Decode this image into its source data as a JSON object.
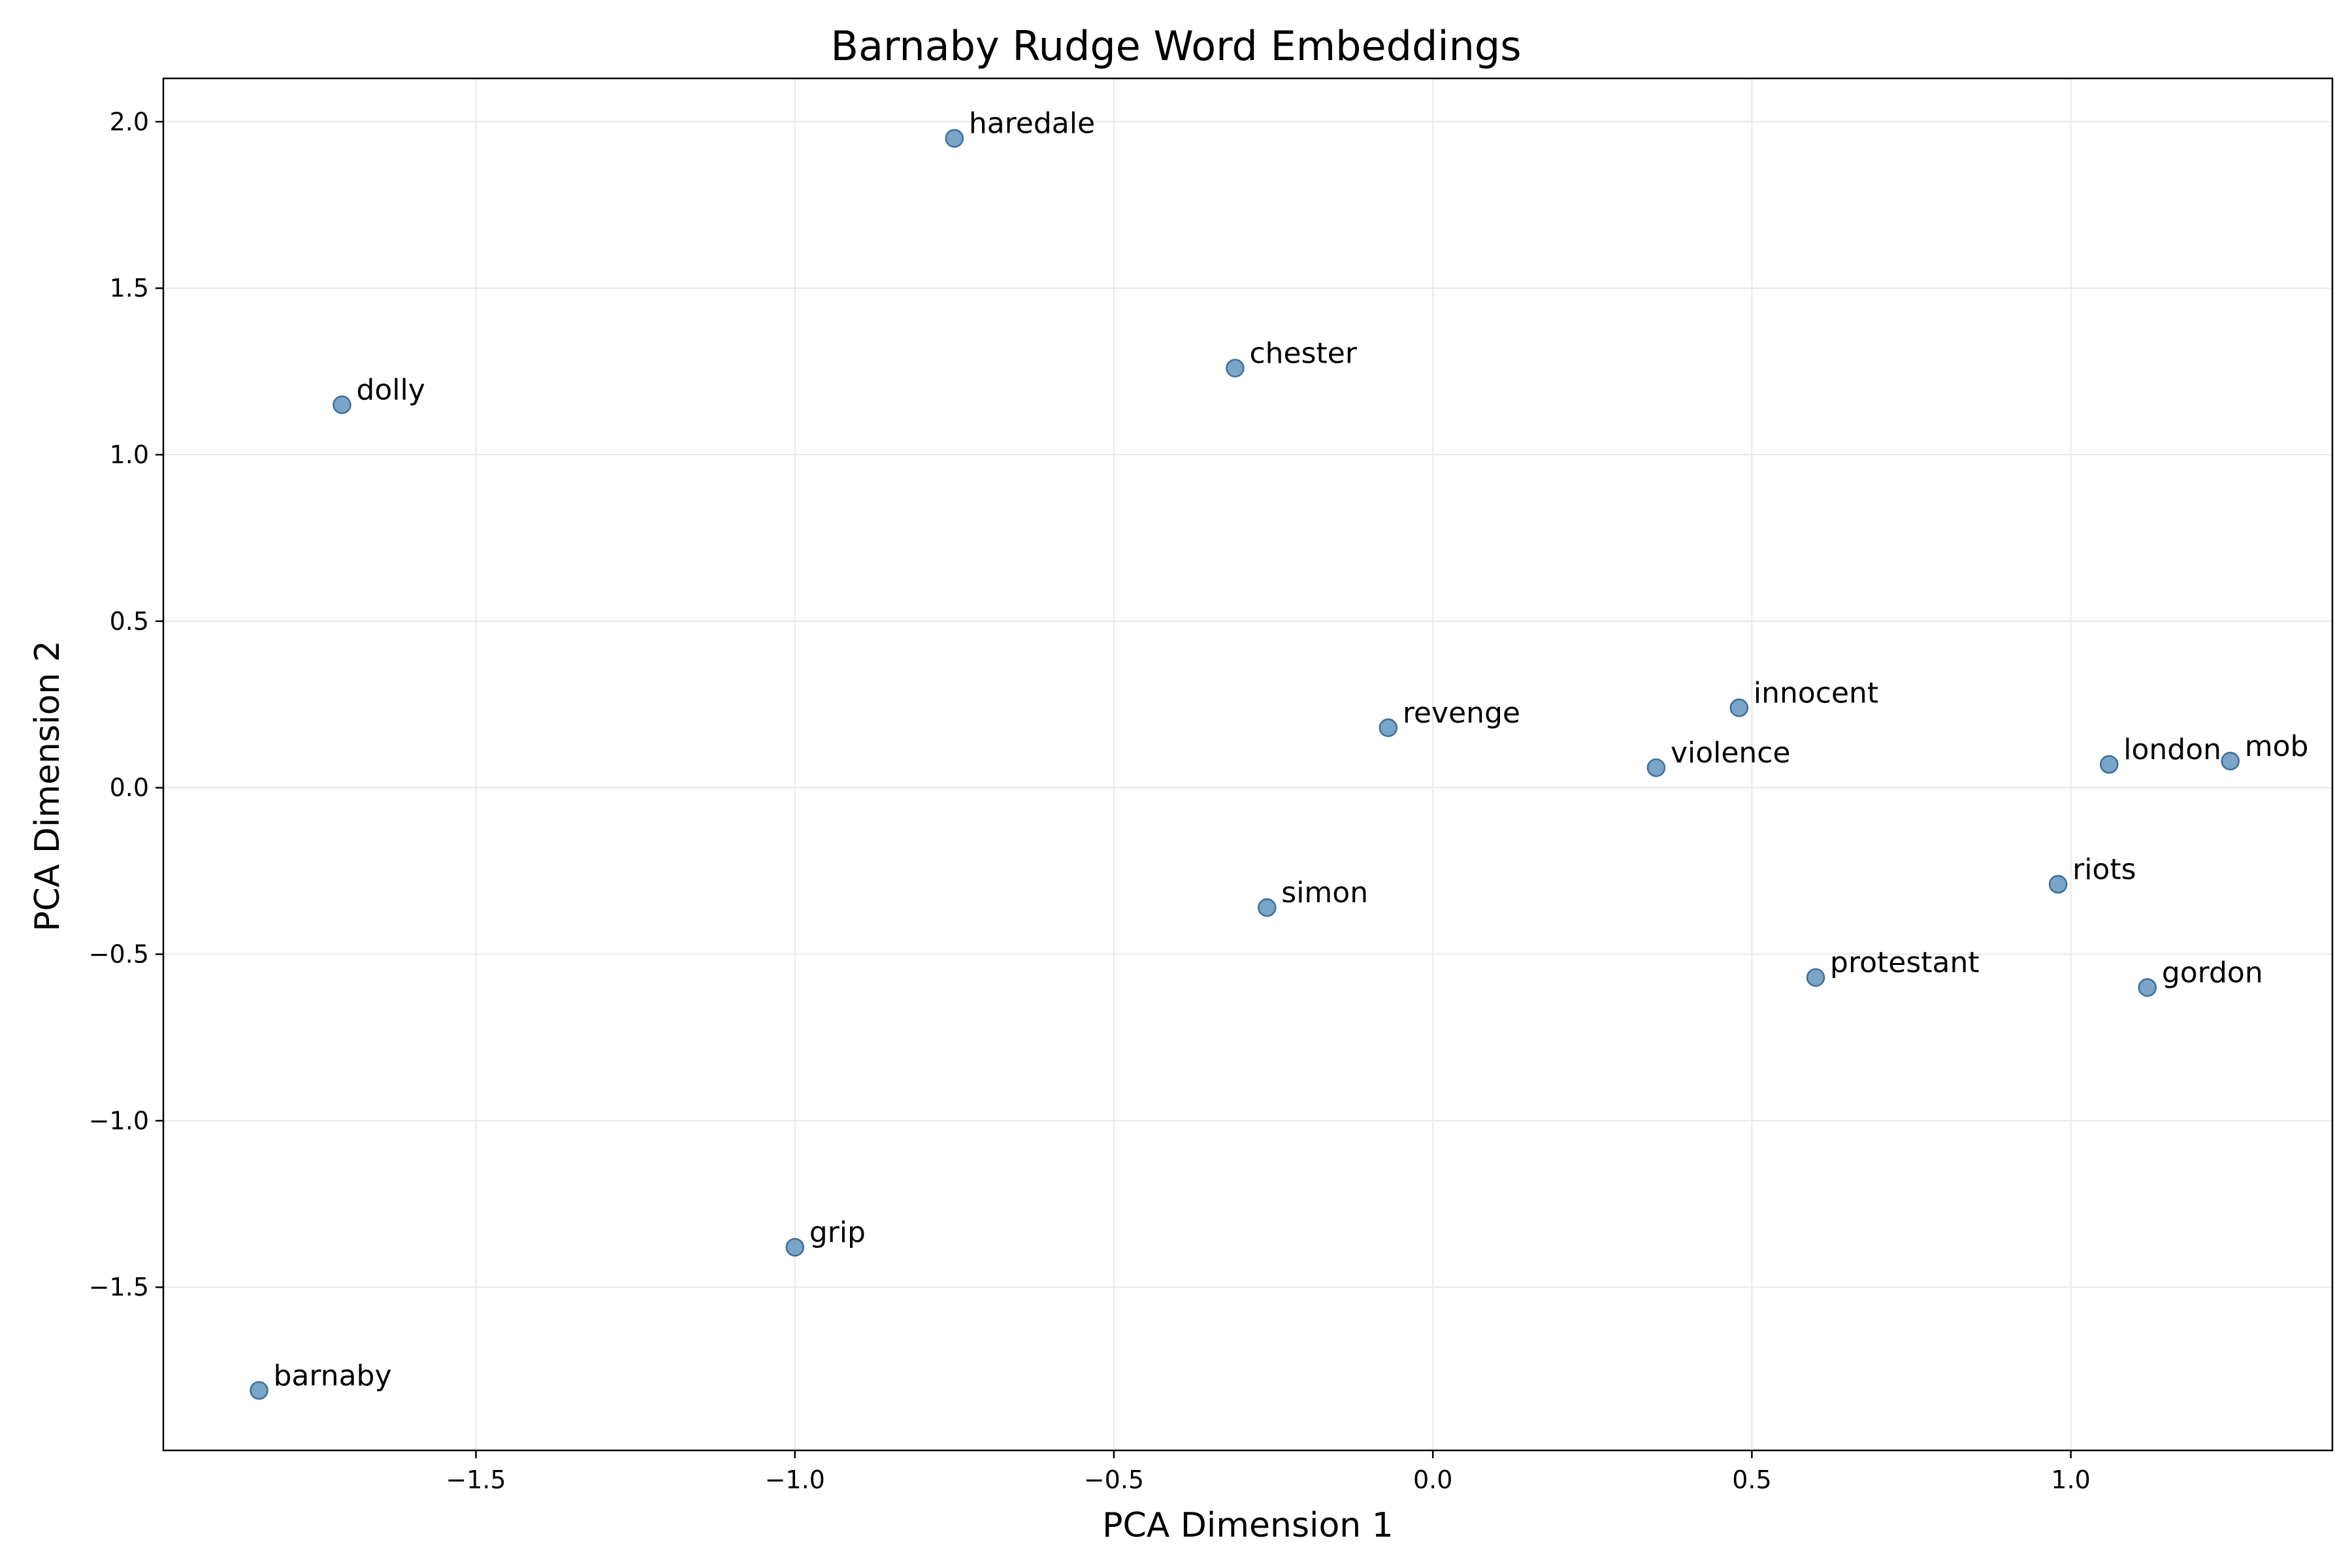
{
  "chart_data": {
    "type": "scatter",
    "title": "Barnaby Rudge Word Embeddings",
    "xlabel": "PCA Dimension 1",
    "ylabel": "PCA Dimension 2",
    "xlim": [
      -1.99,
      1.41
    ],
    "ylim": [
      -1.99,
      2.13
    ],
    "xticks": [
      -1.5,
      -1.0,
      -0.5,
      0.0,
      0.5,
      1.0
    ],
    "yticks": [
      -1.5,
      -1.0,
      -0.5,
      0.0,
      0.5,
      1.0,
      1.5,
      2.0
    ],
    "xtick_labels": [
      "−1.5",
      "−1.0",
      "−0.5",
      "0.0",
      "0.5",
      "1.0"
    ],
    "ytick_labels": [
      "−1.5",
      "−1.0",
      "−0.5",
      "0.0",
      "0.5",
      "1.0",
      "1.5",
      "2.0"
    ],
    "grid": true,
    "marker_color": "#4682b4",
    "points": [
      {
        "label": "haredale",
        "x": -0.75,
        "y": 1.95
      },
      {
        "label": "chester",
        "x": -0.31,
        "y": 1.26
      },
      {
        "label": "dolly",
        "x": -1.71,
        "y": 1.15
      },
      {
        "label": "innocent",
        "x": 0.48,
        "y": 0.24
      },
      {
        "label": "revenge",
        "x": -0.07,
        "y": 0.18
      },
      {
        "label": "violence",
        "x": 0.35,
        "y": 0.06
      },
      {
        "label": "london",
        "x": 1.06,
        "y": 0.07
      },
      {
        "label": "mob",
        "x": 1.25,
        "y": 0.08
      },
      {
        "label": "riots",
        "x": 0.98,
        "y": -0.29
      },
      {
        "label": "simon",
        "x": -0.26,
        "y": -0.36
      },
      {
        "label": "protestant",
        "x": 0.6,
        "y": -0.57
      },
      {
        "label": "gordon",
        "x": 1.12,
        "y": -0.6
      },
      {
        "label": "grip",
        "x": -1.0,
        "y": -1.38
      },
      {
        "label": "barnaby",
        "x": -1.84,
        "y": -1.81
      }
    ]
  }
}
